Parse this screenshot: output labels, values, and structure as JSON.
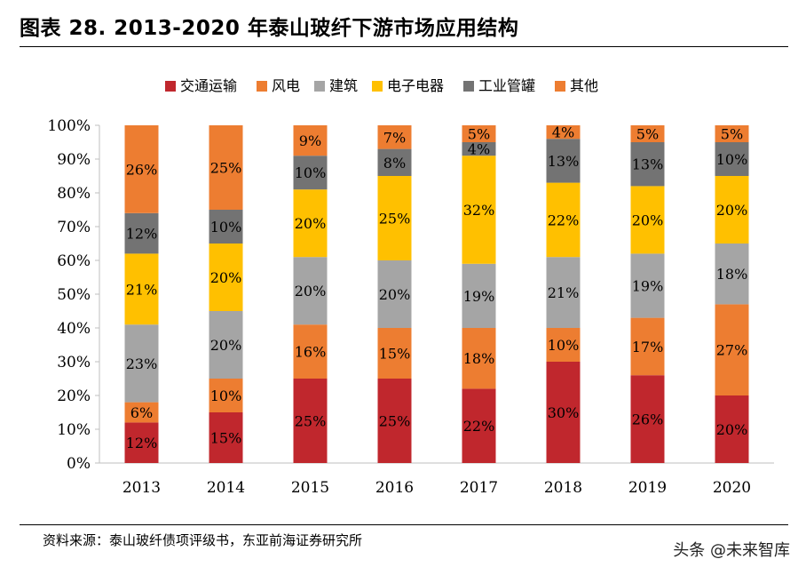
{
  "header": {
    "title": "图表 28. 2013-2020 年泰山玻纤下游市场应用结构"
  },
  "footer": {
    "source": "资料来源：泰山玻纤债项评级书，东亚前海证券研究所",
    "watermark": "头条 @未来智库"
  },
  "chart_data": {
    "type": "bar",
    "stacked": true,
    "categories": [
      "2013",
      "2014",
      "2015",
      "2016",
      "2017",
      "2018",
      "2019",
      "2020"
    ],
    "ylim": [
      0,
      100
    ],
    "yticks": [
      "0%",
      "10%",
      "20%",
      "30%",
      "40%",
      "50%",
      "60%",
      "70%",
      "80%",
      "90%",
      "100%"
    ],
    "legend_position": "top",
    "series": [
      {
        "name": "交通运输",
        "color": "#c0272d",
        "values": [
          12,
          15,
          25,
          25,
          22,
          30,
          26,
          20
        ],
        "labels": [
          "12%",
          "15%",
          "25%",
          "25%",
          "22%",
          "30%",
          "26%",
          "20%"
        ]
      },
      {
        "name": "风电",
        "color": "#ed7d31",
        "values": [
          6,
          10,
          16,
          15,
          18,
          10,
          17,
          27
        ],
        "labels": [
          "6%",
          "10%",
          "16%",
          "15%",
          "18%",
          "10%",
          "17%",
          "27%"
        ]
      },
      {
        "name": "建筑",
        "color": "#a5a5a5",
        "values": [
          23,
          20,
          20,
          20,
          19,
          21,
          19,
          18
        ],
        "labels": [
          "23%",
          "20%",
          "20%",
          "20%",
          "19%",
          "21%",
          "19%",
          "18%"
        ]
      },
      {
        "name": "电子电器",
        "color": "#ffc000",
        "values": [
          21,
          20,
          20,
          25,
          32,
          22,
          20,
          20
        ],
        "labels": [
          "21%",
          "20%",
          "20%",
          "25%",
          "32%",
          "22%",
          "20%",
          "20%"
        ]
      },
      {
        "name": "工业管罐",
        "color": "#737373",
        "values": [
          12,
          10,
          10,
          8,
          4,
          13,
          13,
          10
        ],
        "labels": [
          "12%",
          "10%",
          "10%",
          "8%",
          "4%",
          "13%",
          "13%",
          "10%"
        ]
      },
      {
        "name": "其他",
        "color": "#ed7d31",
        "values": [
          26,
          25,
          9,
          7,
          5,
          4,
          5,
          5
        ],
        "labels": [
          "26%",
          "25%",
          "9%",
          "7%",
          "5%",
          "4%",
          "5%",
          "5%"
        ]
      }
    ]
  }
}
